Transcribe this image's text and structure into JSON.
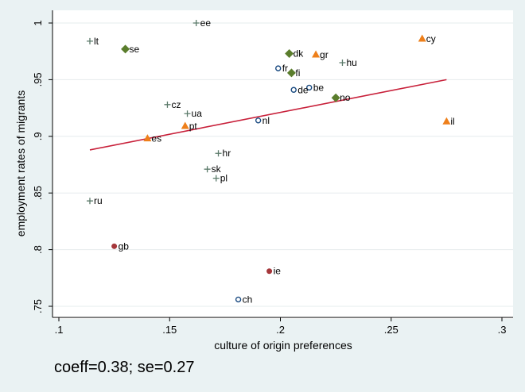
{
  "chart_data": {
    "type": "scatter",
    "title": "",
    "xlabel": "culture of origin preferences",
    "ylabel": "employment rates of migrants",
    "xlim": [
      0.1,
      0.3
    ],
    "ylim": [
      0.75,
      1.0
    ],
    "xticks": [
      ".1",
      ".15",
      ".2",
      ".25",
      ".3"
    ],
    "yticks": [
      ".75",
      ".8",
      ".85",
      ".9",
      ".95",
      "1"
    ],
    "grid": "horizontal",
    "legend": "none",
    "points": [
      {
        "label": "ee",
        "x": 0.162,
        "y": 1.0,
        "marker": "plus"
      },
      {
        "label": "lt",
        "x": 0.114,
        "y": 0.984,
        "marker": "plus"
      },
      {
        "label": "se",
        "x": 0.13,
        "y": 0.977,
        "marker": "diamond"
      },
      {
        "label": "cy",
        "x": 0.264,
        "y": 0.986,
        "marker": "triangle"
      },
      {
        "label": "dk",
        "x": 0.204,
        "y": 0.973,
        "marker": "diamond"
      },
      {
        "label": "gr",
        "x": 0.216,
        "y": 0.972,
        "marker": "triangle"
      },
      {
        "label": "hu",
        "x": 0.228,
        "y": 0.965,
        "marker": "plus"
      },
      {
        "label": "fr",
        "x": 0.199,
        "y": 0.96,
        "marker": "circle"
      },
      {
        "label": "fi",
        "x": 0.205,
        "y": 0.956,
        "marker": "diamond"
      },
      {
        "label": "be",
        "x": 0.213,
        "y": 0.943,
        "marker": "circle"
      },
      {
        "label": "de",
        "x": 0.206,
        "y": 0.941,
        "marker": "circle"
      },
      {
        "label": "no",
        "x": 0.225,
        "y": 0.934,
        "marker": "diamond"
      },
      {
        "label": "cz",
        "x": 0.149,
        "y": 0.928,
        "marker": "plus"
      },
      {
        "label": "ua",
        "x": 0.158,
        "y": 0.92,
        "marker": "plus"
      },
      {
        "label": "nl",
        "x": 0.19,
        "y": 0.914,
        "marker": "circle"
      },
      {
        "label": "il",
        "x": 0.275,
        "y": 0.913,
        "marker": "triangle"
      },
      {
        "label": "pt",
        "x": 0.157,
        "y": 0.909,
        "marker": "triangle"
      },
      {
        "label": "es",
        "x": 0.14,
        "y": 0.898,
        "marker": "triangle"
      },
      {
        "label": "hr",
        "x": 0.172,
        "y": 0.885,
        "marker": "plus"
      },
      {
        "label": "sk",
        "x": 0.167,
        "y": 0.871,
        "marker": "plus"
      },
      {
        "label": "pl",
        "x": 0.171,
        "y": 0.863,
        "marker": "plus"
      },
      {
        "label": "ru",
        "x": 0.114,
        "y": 0.843,
        "marker": "plus"
      },
      {
        "label": "gb",
        "x": 0.125,
        "y": 0.803,
        "marker": "dot"
      },
      {
        "label": "ie",
        "x": 0.195,
        "y": 0.781,
        "marker": "dot"
      },
      {
        "label": "ch",
        "x": 0.181,
        "y": 0.756,
        "marker": "circle"
      }
    ],
    "fit_line": {
      "x": [
        0.114,
        0.275
      ],
      "y": [
        0.888,
        0.95
      ]
    },
    "colors": {
      "plus": "#5b7a6a",
      "diamond": "#5a7d2c",
      "triangle": "#ee7f1a",
      "circle": "#1c4c82",
      "dot": "#a5373b",
      "fit_line": "#c8203a"
    }
  },
  "note": "coeff=0.38; se=0.27"
}
